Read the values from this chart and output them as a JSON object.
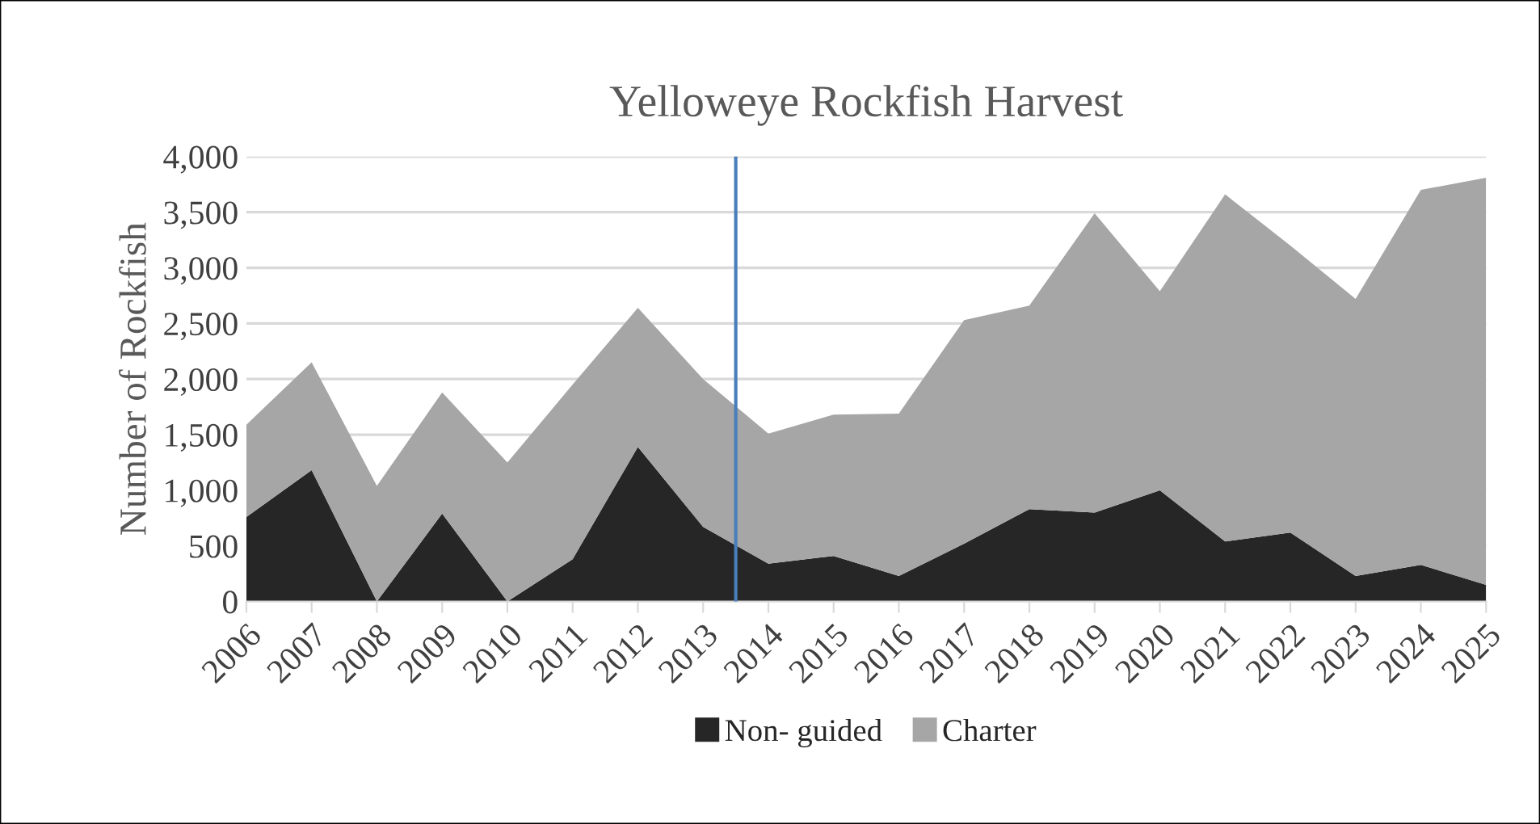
{
  "chart_data": {
    "type": "area",
    "title": "Yelloweye Rockfish Harvest",
    "ylabel": "Number of Rockfish",
    "stacked": true,
    "x": [
      2006,
      2007,
      2008,
      2009,
      2010,
      2011,
      2012,
      2013,
      2014,
      2015,
      2016,
      2017,
      2018,
      2019,
      2020,
      2021,
      2022,
      2023,
      2024,
      2025
    ],
    "series": [
      {
        "name": "Non- guided",
        "color": "#262626",
        "values": [
          760,
          1180,
          0,
          790,
          0,
          380,
          1390,
          670,
          340,
          410,
          230,
          520,
          830,
          800,
          1000,
          540,
          620,
          230,
          330,
          150
        ]
      },
      {
        "name": "Charter",
        "color": "#a6a6a6",
        "values": [
          830,
          970,
          1040,
          1090,
          1250,
          1570,
          1250,
          1330,
          1170,
          1270,
          1460,
          2010,
          1830,
          2690,
          1790,
          3120,
          2580,
          2490,
          3370,
          3660
        ]
      }
    ],
    "xlim": [
      2006,
      2025
    ],
    "xticks": [
      2006,
      2007,
      2008,
      2009,
      2010,
      2011,
      2012,
      2013,
      2014,
      2015,
      2016,
      2017,
      2018,
      2019,
      2020,
      2021,
      2022,
      2023,
      2024,
      2025
    ],
    "ylim": [
      0,
      4000
    ],
    "yticks": [
      {
        "value": 0,
        "label": "0"
      },
      {
        "value": 500,
        "label": "500"
      },
      {
        "value": 1000,
        "label": "1,000"
      },
      {
        "value": 1500,
        "label": "1,500"
      },
      {
        "value": 2000,
        "label": "2,000"
      },
      {
        "value": 2500,
        "label": "2,500"
      },
      {
        "value": 3000,
        "label": "3,000"
      },
      {
        "value": 3500,
        "label": "3,500"
      },
      {
        "value": 4000,
        "label": "4,000"
      }
    ],
    "ref_lines": [
      {
        "axis": "x",
        "value": 2013.5,
        "color": "#4a7ebb"
      }
    ],
    "grid": "y",
    "legend": "bottom"
  }
}
